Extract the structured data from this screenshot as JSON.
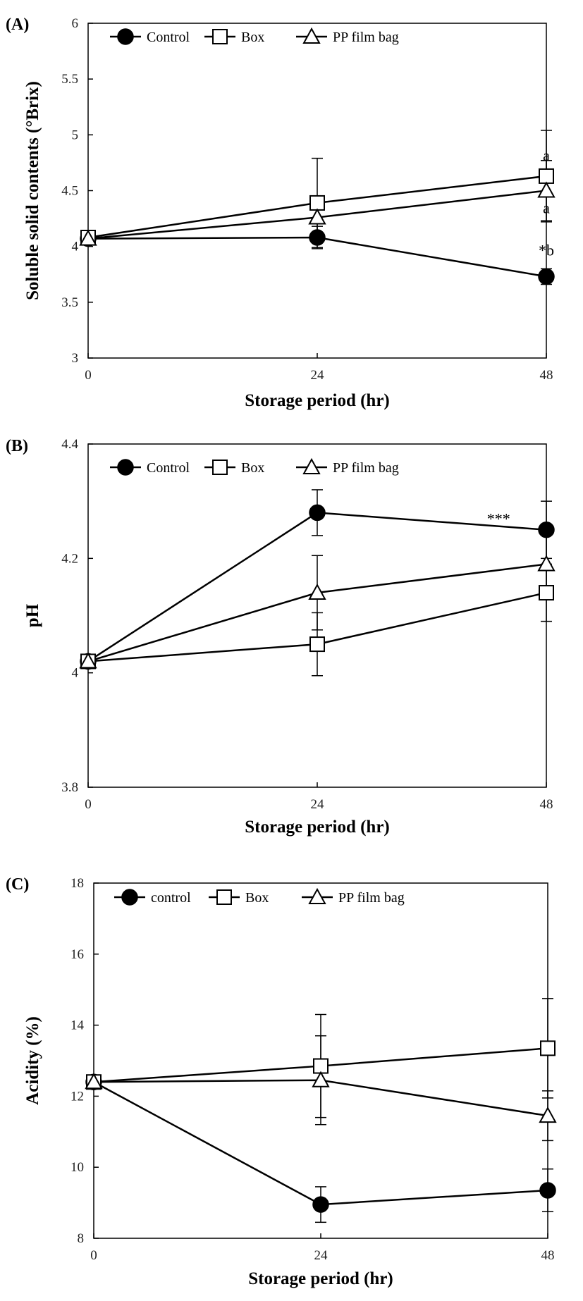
{
  "chart_data": [
    {
      "type": "line",
      "panel_label": "(A)",
      "xlabel": "Storage period (hr)",
      "ylabel": "Soluble solid contents (°Brix)",
      "x": [
        0,
        24,
        48
      ],
      "x_tick_labels": [
        "0",
        "24",
        "48"
      ],
      "ylim": [
        3,
        6
      ],
      "y_ticks": [
        3,
        3.5,
        4,
        4.5,
        5,
        5.5,
        6
      ],
      "y_tick_labels": [
        "3",
        "3.5",
        "4",
        "4.5",
        "5",
        "5.5",
        "6"
      ],
      "grid": false,
      "legend_position": "top",
      "series": [
        {
          "name": "Control",
          "marker": "filled-circle",
          "values": [
            4.07,
            4.08,
            3.73
          ],
          "error": [
            0.03,
            0.1,
            0.07
          ]
        },
        {
          "name": "Box",
          "marker": "open-square",
          "values": [
            4.08,
            4.39,
            4.63
          ],
          "error": [
            0.02,
            0.4,
            0.41
          ]
        },
        {
          "name": "PP film bag",
          "marker": "open-triangle",
          "values": [
            4.07,
            4.26,
            4.5
          ],
          "error": [
            0.02,
            0.15,
            0.27
          ]
        }
      ],
      "annotations": [
        {
          "text": "a",
          "x": 48,
          "y": 4.82
        },
        {
          "text": "a",
          "x": 48,
          "y": 4.35
        },
        {
          "text": "*b",
          "x": 48,
          "y": 3.97
        }
      ]
    },
    {
      "type": "line",
      "panel_label": "(B)",
      "xlabel": "Storage period (hr)",
      "ylabel": "pH",
      "x": [
        0,
        24,
        48
      ],
      "x_tick_labels": [
        "0",
        "24",
        "48"
      ],
      "ylim": [
        3.8,
        4.4
      ],
      "y_ticks": [
        3.8,
        4.0,
        4.2,
        4.4
      ],
      "y_tick_labels": [
        "3.8",
        "4",
        "4.2",
        "4.4"
      ],
      "grid": false,
      "legend_position": "top",
      "series": [
        {
          "name": "Control",
          "marker": "filled-circle",
          "values": [
            4.02,
            4.28,
            4.25
          ],
          "error": [
            0.005,
            0.04,
            0.05
          ]
        },
        {
          "name": "Box",
          "marker": "open-square",
          "values": [
            4.02,
            4.05,
            4.14
          ],
          "error": [
            0.005,
            0.055,
            0.05
          ]
        },
        {
          "name": "PP film bag",
          "marker": "open-triangle",
          "values": [
            4.02,
            4.14,
            4.19
          ],
          "error": [
            0.005,
            0.065,
            0.06
          ]
        }
      ],
      "annotations": [
        {
          "text": "***",
          "x": 43,
          "y": 4.27
        }
      ]
    },
    {
      "type": "line",
      "panel_label": "(C)",
      "xlabel": "Storage period (hr)",
      "ylabel": "Acidity (%)",
      "x": [
        0,
        24,
        48
      ],
      "x_tick_labels": [
        "0",
        "24",
        "48"
      ],
      "ylim": [
        8,
        18
      ],
      "y_ticks": [
        8,
        10,
        12,
        14,
        16,
        18
      ],
      "y_tick_labels": [
        "8",
        "10",
        "12",
        "14",
        "16",
        "18"
      ],
      "grid": false,
      "legend_position": "top",
      "series": [
        {
          "name": "control",
          "marker": "filled-circle",
          "values": [
            12.4,
            8.95,
            9.35
          ],
          "error": [
            0.1,
            0.5,
            0.6
          ]
        },
        {
          "name": "Box",
          "marker": "open-square",
          "values": [
            12.4,
            12.85,
            13.35
          ],
          "error": [
            0.1,
            1.45,
            1.4
          ]
        },
        {
          "name": "PP film bag",
          "marker": "open-triangle",
          "values": [
            12.4,
            12.45,
            11.45
          ],
          "error": [
            0.1,
            1.25,
            0.7
          ]
        }
      ],
      "annotations": []
    }
  ]
}
